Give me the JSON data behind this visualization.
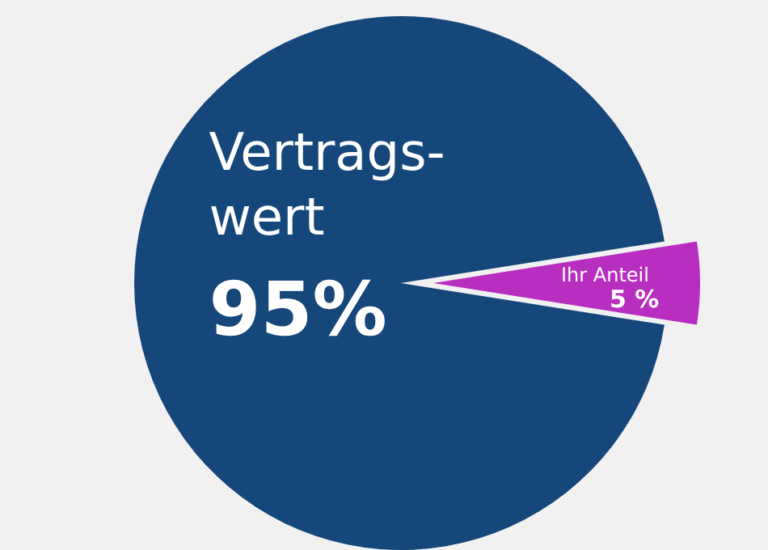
{
  "chart_data": {
    "type": "pie",
    "categories": [
      "Vertrags-wert",
      "Ihr Anteil"
    ],
    "values": [
      95,
      5
    ],
    "colors": [
      "#15477a",
      "#b82ec0"
    ],
    "value_labels": [
      "95%",
      "5 %"
    ]
  }
}
